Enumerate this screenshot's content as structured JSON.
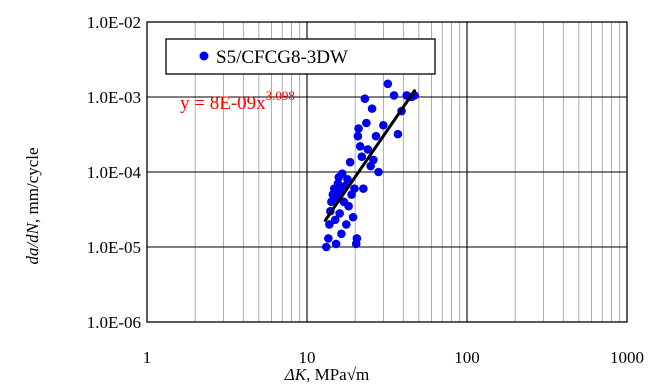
{
  "chart_data": {
    "type": "scatter",
    "x_scale": "log",
    "y_scale": "log",
    "xlim": [
      1,
      1000
    ],
    "ylim": [
      1e-06,
      0.01
    ],
    "x_ticks": [
      "1",
      "10",
      "100",
      "1000"
    ],
    "y_ticks": [
      "1.0E-06",
      "1.0E-05",
      "1.0E-04",
      "1.0E-03",
      "1.0E-02"
    ],
    "xlabel": {
      "symbol": "ΔK",
      "rest": ", MPa√m"
    },
    "ylabel": {
      "symbol": "da/dN",
      "rest": ", mm/cycle"
    },
    "grid": true,
    "legend": {
      "placement": "top-left",
      "entries": [
        "S5/CFCG8-3DW"
      ]
    },
    "annotation": {
      "base": "y = 8E-09x",
      "exponent": "3.098",
      "color": "#ff0000"
    },
    "marker_color": "#0000ee",
    "fit": {
      "coefficient": 8e-09,
      "exponent": 3.098,
      "x_range": [
        13,
        47
      ],
      "color": "#000000"
    },
    "series": [
      {
        "name": "S5/CFCG8-3DW",
        "points": [
          [
            13.2,
            1e-05
          ],
          [
            13.6,
            1.3e-05
          ],
          [
            13.8,
            2e-05
          ],
          [
            14.0,
            3e-05
          ],
          [
            14.2,
            4e-05
          ],
          [
            14.5,
            5e-05
          ],
          [
            14.8,
            6e-05
          ],
          [
            15.0,
            2.3e-05
          ],
          [
            15.2,
            1.1e-05
          ],
          [
            15.4,
            4.5e-05
          ],
          [
            15.6,
            7e-05
          ],
          [
            15.8,
            8.5e-05
          ],
          [
            16.0,
            2.8e-05
          ],
          [
            16.2,
            5.5e-05
          ],
          [
            16.4,
            1.5e-05
          ],
          [
            16.6,
            9.5e-05
          ],
          [
            17.0,
            4e-05
          ],
          [
            17.3,
            6.5e-05
          ],
          [
            17.6,
            2e-05
          ],
          [
            17.9,
            8e-05
          ],
          [
            18.2,
            3.5e-05
          ],
          [
            18.6,
            0.000135
          ],
          [
            19.0,
            5e-05
          ],
          [
            19.4,
            2.5e-05
          ],
          [
            19.8,
            6e-05
          ],
          [
            20.3,
            1.1e-05
          ],
          [
            20.5,
            1.3e-05
          ],
          [
            20.8,
            0.0003
          ],
          [
            21.0,
            0.00038
          ],
          [
            21.5,
            0.00022
          ],
          [
            22.0,
            0.00016
          ],
          [
            22.5,
            6e-05
          ],
          [
            23.0,
            0.00095
          ],
          [
            23.5,
            0.00045
          ],
          [
            24.0,
            0.0002
          ],
          [
            25.0,
            0.00012
          ],
          [
            25.5,
            0.0007
          ],
          [
            26.0,
            0.000145
          ],
          [
            27.0,
            0.0003
          ],
          [
            28.0,
            0.0001
          ],
          [
            30.0,
            0.00042
          ],
          [
            32.0,
            0.0015
          ],
          [
            35.0,
            0.00105
          ],
          [
            37.0,
            0.00032
          ],
          [
            39.0,
            0.00065
          ],
          [
            42.0,
            0.00105
          ],
          [
            45.0,
            0.001
          ],
          [
            47.0,
            0.00105
          ]
        ]
      }
    ]
  }
}
